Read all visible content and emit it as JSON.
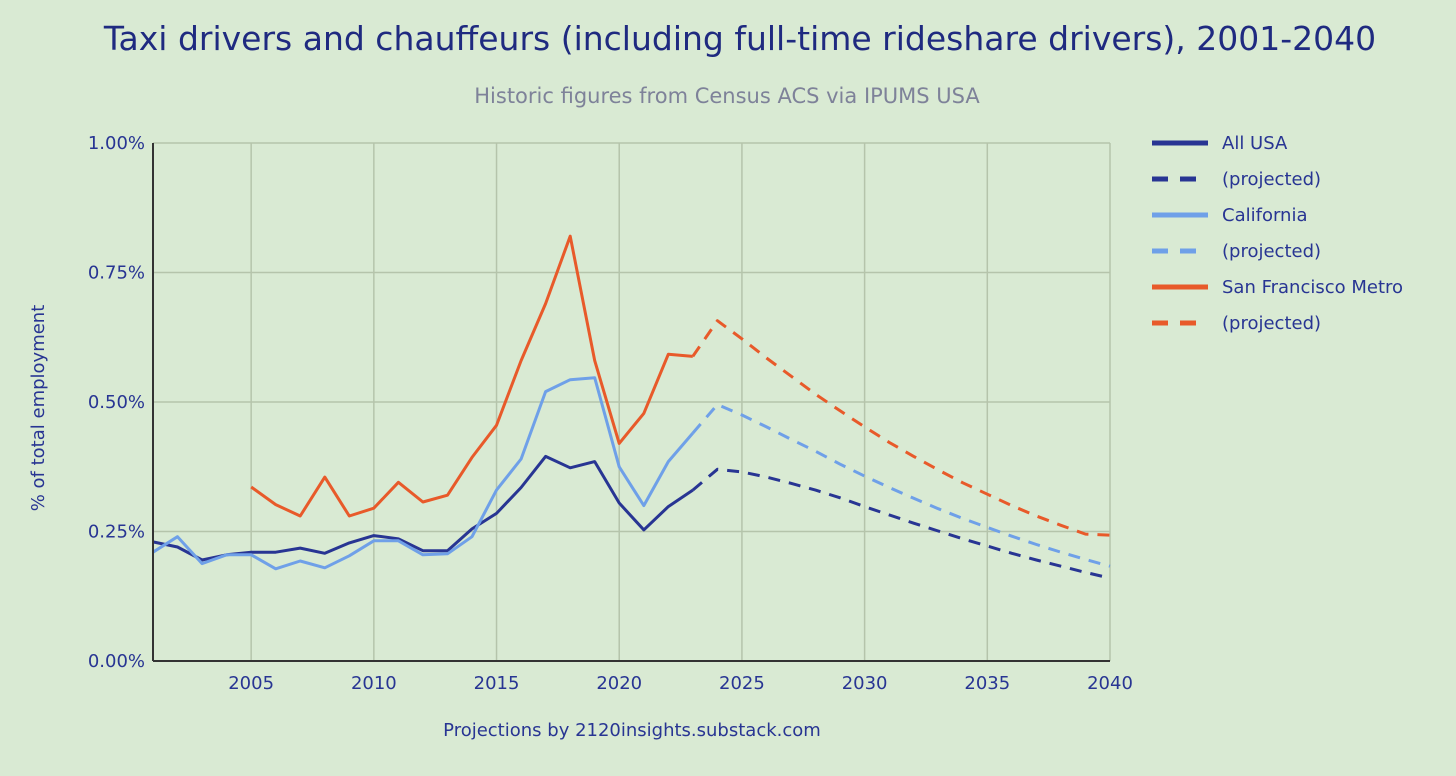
{
  "chart_data": {
    "type": "line",
    "title": "Taxi drivers and chauffeurs (including full-time rideshare drivers), 2001-2040",
    "subtitle": "Historic figures from Census ACS via IPUMS USA",
    "ylabel": "% of total employment",
    "footer": "Projections by 2120insights.substack.com",
    "xlim": [
      2001,
      2040
    ],
    "ylim": [
      0,
      1.0
    ],
    "x_ticks": [
      2005,
      2010,
      2015,
      2020,
      2025,
      2030,
      2035,
      2040
    ],
    "y_ticks": [
      0,
      0.25,
      0.5,
      0.75,
      1.0
    ],
    "y_tick_labels": [
      "0.00%",
      "0.25%",
      "0.50%",
      "0.75%",
      "1.00%"
    ],
    "grid": true,
    "legend_position": "right",
    "series": [
      {
        "name": "All USA",
        "color": "#283593",
        "dashed": false,
        "x": [
          2001,
          2002,
          2003,
          2004,
          2005,
          2006,
          2007,
          2008,
          2009,
          2010,
          2011,
          2012,
          2013,
          2014,
          2015,
          2016,
          2017,
          2018,
          2019,
          2020,
          2021,
          2022,
          2023
        ],
        "values": [
          0.23,
          0.22,
          0.195,
          0.205,
          0.21,
          0.21,
          0.218,
          0.208,
          0.228,
          0.242,
          0.236,
          0.213,
          0.213,
          0.255,
          0.285,
          0.335,
          0.395,
          0.373,
          0.385,
          0.305,
          0.253,
          0.298,
          0.33
        ]
      },
      {
        "name": "(projected)",
        "color": "#283593",
        "dashed": true,
        "x": [
          2023,
          2024,
          2025,
          2026,
          2027,
          2028,
          2029,
          2030,
          2031,
          2032,
          2033,
          2034,
          2035,
          2036,
          2037,
          2038,
          2039,
          2040
        ],
        "values": [
          0.33,
          0.37,
          0.365,
          0.355,
          0.343,
          0.33,
          0.315,
          0.298,
          0.282,
          0.266,
          0.251,
          0.236,
          0.222,
          0.208,
          0.195,
          0.183,
          0.171,
          0.16
        ]
      },
      {
        "name": "California",
        "color": "#6fa0e8",
        "dashed": false,
        "x": [
          2001,
          2002,
          2003,
          2004,
          2005,
          2006,
          2007,
          2008,
          2009,
          2010,
          2011,
          2012,
          2013,
          2014,
          2015,
          2016,
          2017,
          2018,
          2019,
          2020,
          2021,
          2022,
          2023
        ],
        "values": [
          0.21,
          0.24,
          0.188,
          0.205,
          0.205,
          0.178,
          0.193,
          0.18,
          0.203,
          0.232,
          0.232,
          0.205,
          0.207,
          0.24,
          0.33,
          0.39,
          0.52,
          0.543,
          0.547,
          0.375,
          0.3,
          0.385,
          0.44
        ]
      },
      {
        "name": "(projected)",
        "color": "#6fa0e8",
        "dashed": true,
        "x": [
          2023,
          2024,
          2025,
          2026,
          2027,
          2028,
          2029,
          2030,
          2031,
          2032,
          2033,
          2034,
          2035,
          2036,
          2037,
          2038,
          2039,
          2040
        ],
        "values": [
          0.44,
          0.495,
          0.475,
          0.452,
          0.428,
          0.405,
          0.38,
          0.357,
          0.335,
          0.314,
          0.294,
          0.275,
          0.258,
          0.241,
          0.225,
          0.21,
          0.196,
          0.183
        ]
      },
      {
        "name": "San Francisco Metro",
        "color": "#e85a2a",
        "dashed": false,
        "x": [
          2005,
          2006,
          2007,
          2008,
          2009,
          2010,
          2011,
          2012,
          2013,
          2014,
          2015,
          2016,
          2017,
          2018,
          2019,
          2020,
          2021,
          2022,
          2023
        ],
        "values": [
          0.336,
          0.302,
          0.28,
          0.355,
          0.28,
          0.295,
          0.345,
          0.307,
          0.32,
          0.393,
          0.455,
          0.58,
          0.69,
          0.82,
          0.58,
          0.42,
          0.478,
          0.592,
          0.588
        ]
      },
      {
        "name": "(projected)",
        "color": "#e85a2a",
        "dashed": true,
        "x": [
          2023,
          2024,
          2025,
          2026,
          2027,
          2028,
          2029,
          2030,
          2031,
          2032,
          2033,
          2034,
          2035,
          2036,
          2037,
          2038,
          2039,
          2040
        ],
        "values": [
          0.588,
          0.657,
          0.622,
          0.585,
          0.55,
          0.515,
          0.483,
          0.452,
          0.422,
          0.395,
          0.369,
          0.344,
          0.322,
          0.3,
          0.28,
          0.262,
          0.245,
          0.243
        ]
      }
    ]
  }
}
